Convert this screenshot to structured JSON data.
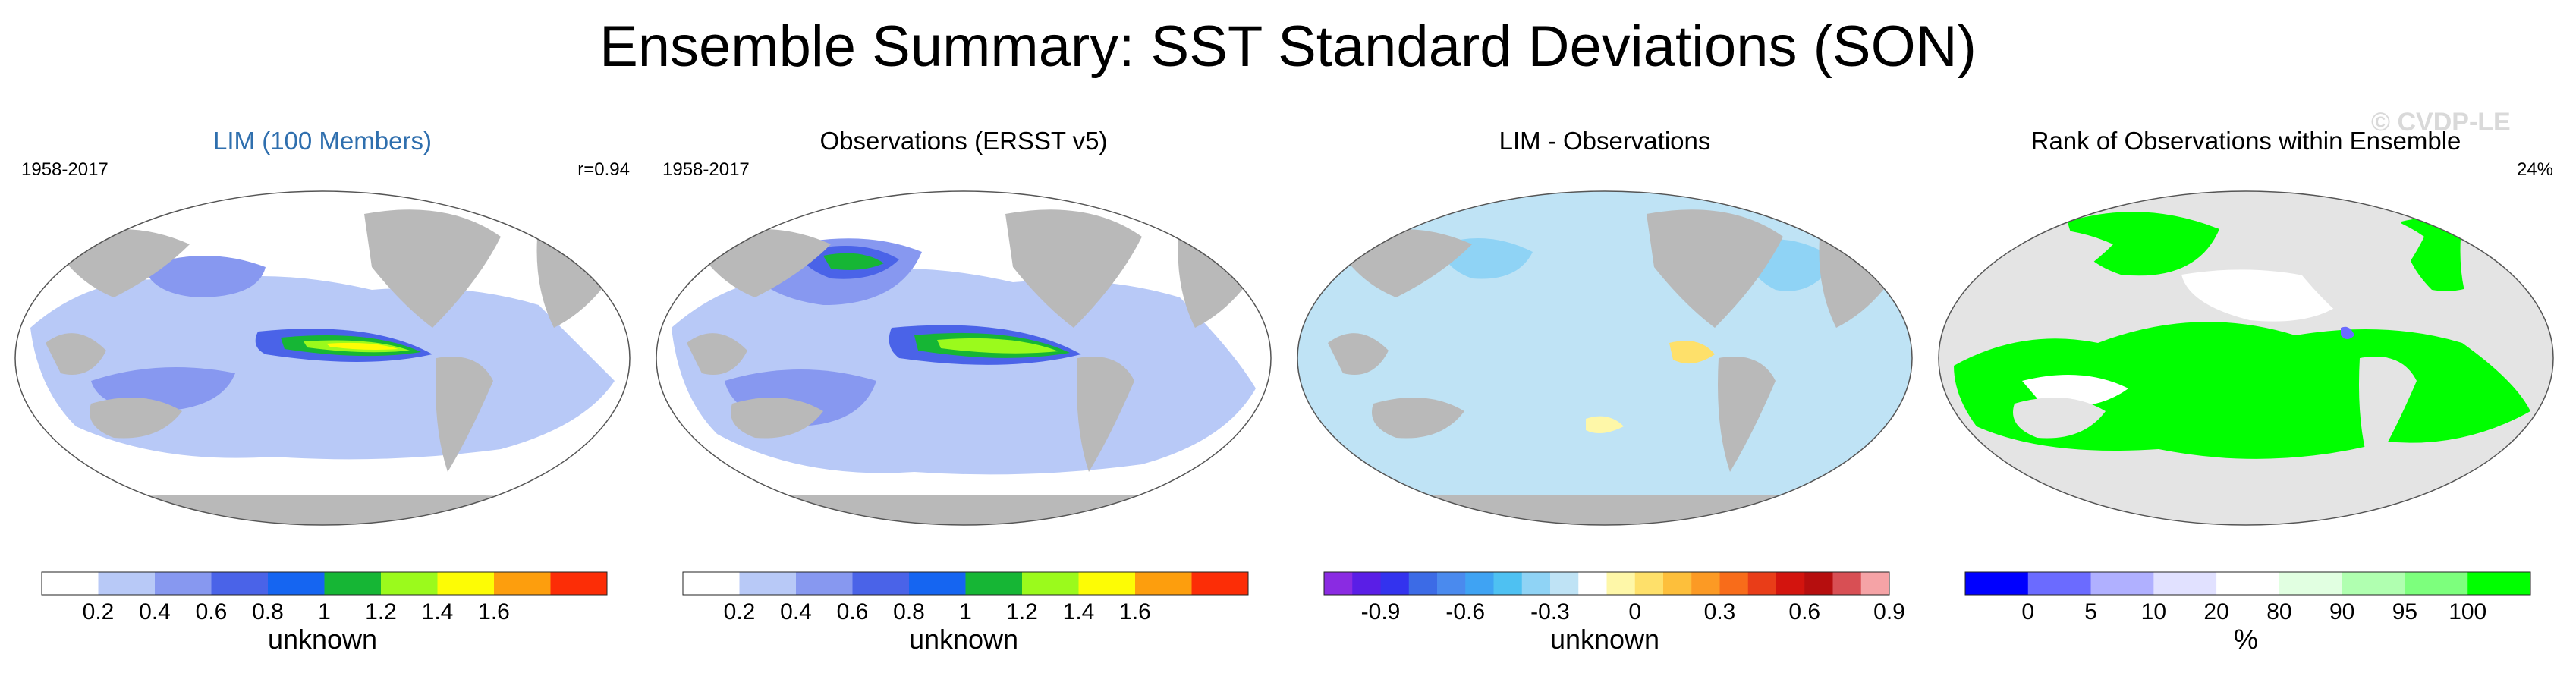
{
  "title": "Ensemble Summary: SST Standard Deviations (SON)",
  "watermark": "© CVDP-LE",
  "colors": {
    "land": "#b9b9b9",
    "ocean_low": "#ffffff",
    "bg_rank": "#e4e4e4"
  },
  "panels": [
    {
      "title": "LIM (100 Members)",
      "period": "1958-2017",
      "stat": "r=0.94",
      "colorbar": {
        "unit": "unknown",
        "colors": [
          "#ffffff",
          "#b8c9f7",
          "#8798f0",
          "#4a63e8",
          "#1565f1",
          "#16b635",
          "#9bfa1c",
          "#fdfc05",
          "#fd9e0d",
          "#fc2d06"
        ],
        "labels": [
          "0.2",
          "0.4",
          "0.6",
          "0.8",
          "1",
          "1.2",
          "1.4",
          "1.6"
        ]
      }
    },
    {
      "title": "Observations (ERSST v5)",
      "period": "1958-2017",
      "stat": "",
      "colorbar": {
        "unit": "unknown",
        "colors": [
          "#ffffff",
          "#b8c9f7",
          "#8798f0",
          "#4a63e8",
          "#1565f1",
          "#16b635",
          "#9bfa1c",
          "#fdfc05",
          "#fd9e0d",
          "#fc2d06"
        ],
        "labels": [
          "0.2",
          "0.4",
          "0.6",
          "0.8",
          "1",
          "1.2",
          "1.4",
          "1.6"
        ]
      }
    },
    {
      "title": "LIM - Observations",
      "period": "",
      "stat": "",
      "colorbar": {
        "unit": "unknown",
        "colors": [
          "#8a2be2",
          "#5a1ee6",
          "#3333ee",
          "#3c6be6",
          "#4a8aee",
          "#3fa3f3",
          "#4ec1f2",
          "#8fd3f5",
          "#bfe3f5",
          "#ffffff",
          "#fef7a8",
          "#fee06a",
          "#fdbf3b",
          "#fc9a24",
          "#f86c1a",
          "#e93d18",
          "#d3140e",
          "#b60e0e",
          "#d84f54",
          "#f5a3a6"
        ],
        "labels": [
          "-0.9",
          "-0.6",
          "-0.3",
          "0",
          "0.3",
          "0.6",
          "0.9"
        ]
      }
    },
    {
      "title": "Rank of Observations within Ensemble",
      "period": "",
      "stat": "24%",
      "colorbar": {
        "unit": "%",
        "colors": [
          "#0000ff",
          "#6b6bff",
          "#b0b0ff",
          "#e1e1ff",
          "#ffffff",
          "#e1ffe1",
          "#b0ffb0",
          "#7dff7d",
          "#00ff00"
        ],
        "labels": [
          "0",
          "5",
          "10",
          "20",
          "80",
          "90",
          "95",
          "100"
        ]
      }
    }
  ]
}
